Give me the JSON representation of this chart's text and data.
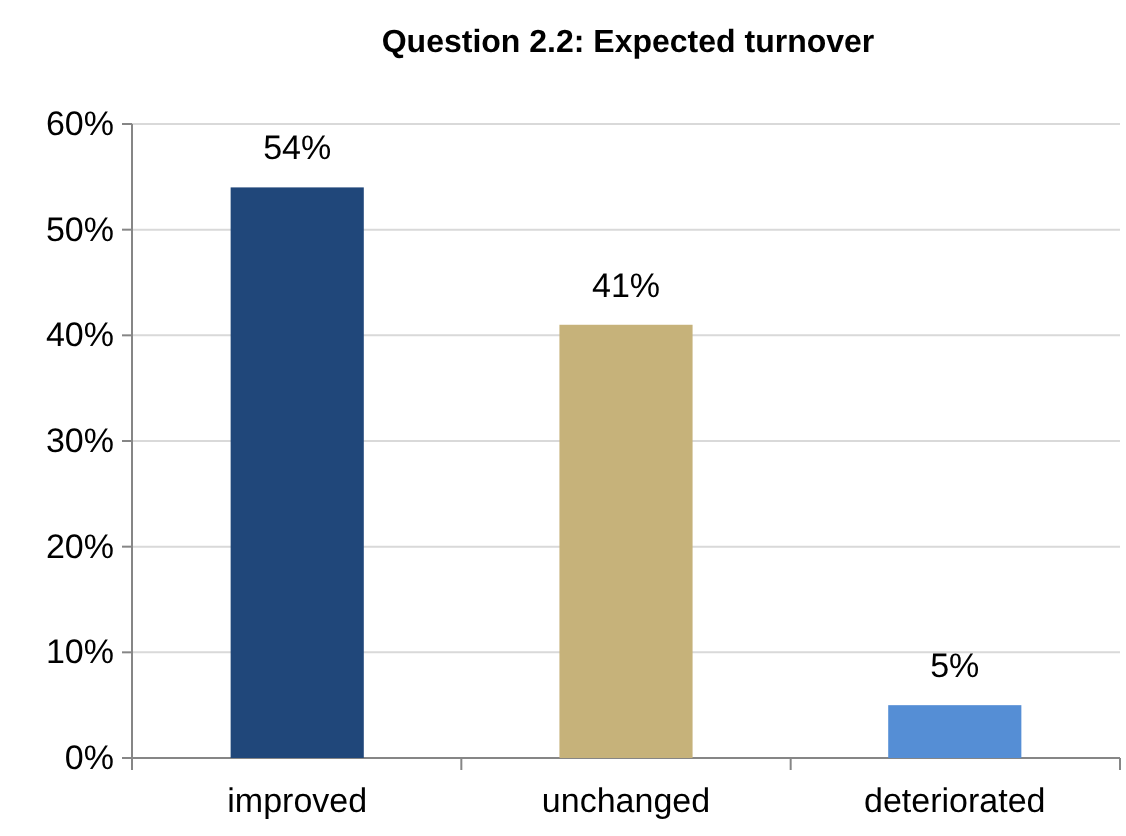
{
  "chart_data": {
    "type": "bar",
    "title": "Question 2.2: Expected turnover",
    "categories": [
      "improved",
      "unchanged",
      "deteriorated"
    ],
    "values": [
      54,
      41,
      5
    ],
    "colors": [
      "#20477a",
      "#c6b27a",
      "#558ed5"
    ],
    "value_labels": [
      "54%",
      "41%",
      "5%"
    ],
    "ylim": [
      0,
      60
    ],
    "yticks": [
      {
        "value": 0,
        "label": "0%"
      },
      {
        "value": 10,
        "label": "10%"
      },
      {
        "value": 20,
        "label": "20%"
      },
      {
        "value": 30,
        "label": "30%"
      },
      {
        "value": 40,
        "label": "40%"
      },
      {
        "value": 50,
        "label": "50%"
      },
      {
        "value": 60,
        "label": "60%"
      }
    ],
    "grid": "y"
  }
}
